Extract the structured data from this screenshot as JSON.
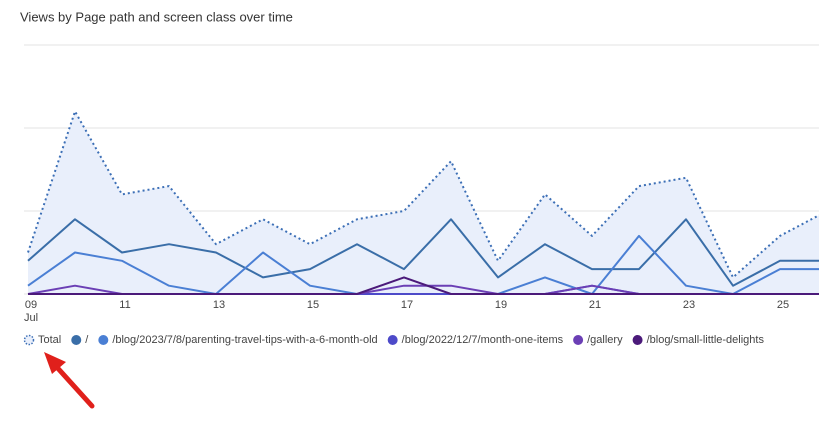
{
  "chart_data": {
    "type": "line",
    "title": "Views by Page path and screen class over time",
    "categories": [
      "09",
      null,
      "11",
      null,
      "13",
      null,
      "15",
      null,
      "17",
      null,
      "19",
      null,
      "21",
      null,
      "23",
      null,
      "25",
      null
    ],
    "x_sublabel": "Jul",
    "ylim": [
      0,
      30
    ],
    "gridlines": [
      0,
      10,
      20,
      30
    ],
    "series": [
      {
        "name": "Total",
        "color": "#3c6fb6",
        "style": "dotted",
        "fill": "#e9effb",
        "values": [
          5,
          22,
          12,
          13,
          6,
          9,
          6,
          9,
          10,
          16,
          4,
          12,
          7,
          13,
          14,
          2,
          7,
          10
        ]
      },
      {
        "name": "/",
        "color": "#3a6ea8",
        "style": "solid",
        "values": [
          4,
          9,
          5,
          6,
          5,
          2,
          3,
          6,
          3,
          9,
          2,
          6,
          3,
          3,
          9,
          1,
          4,
          4
        ]
      },
      {
        "name": "/blog/2023/7/8/parenting-travel-tips-with-a-6-month-old",
        "color": "#4a7fd4",
        "style": "solid",
        "values": [
          1,
          5,
          4,
          1,
          0,
          5,
          1,
          0,
          0,
          0,
          0,
          2,
          0,
          7,
          1,
          0,
          3,
          3
        ]
      },
      {
        "name": "/blog/2022/12/7/month-one-items",
        "color": "#4d4ac9",
        "style": "solid",
        "values": [
          0,
          0,
          0,
          0,
          0,
          0,
          0,
          0,
          0,
          0,
          0,
          0,
          1,
          0,
          0,
          0,
          0,
          0
        ]
      },
      {
        "name": "/gallery",
        "color": "#6b3fb5",
        "style": "solid",
        "values": [
          0,
          1,
          0,
          0,
          0,
          0,
          0,
          0,
          1,
          1,
          0,
          0,
          1,
          0,
          0,
          0,
          0,
          0
        ]
      },
      {
        "name": "/blog/small-little-delights",
        "color": "#4b1a7a",
        "style": "solid",
        "values": [
          0,
          0,
          0,
          0,
          0,
          0,
          0,
          0,
          2,
          0,
          0,
          0,
          0,
          0,
          0,
          0,
          0,
          0
        ]
      }
    ]
  }
}
